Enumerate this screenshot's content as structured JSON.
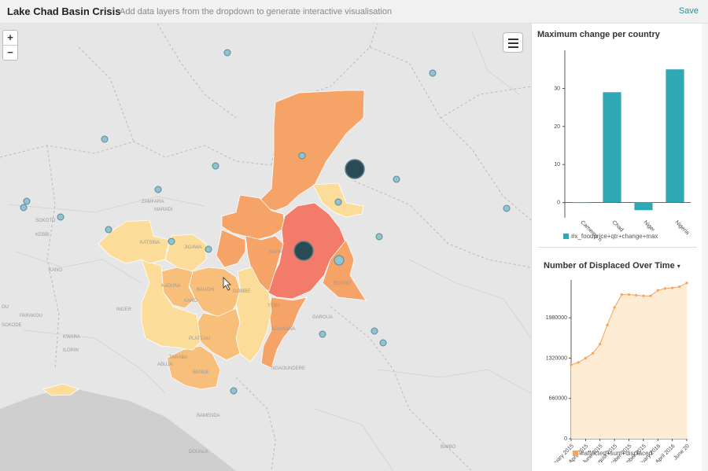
{
  "header": {
    "title": "Lake Chad Basin Crisis",
    "subtitle": "Add data layers from the dropdown to generate interactive visualisation",
    "save_label": "Save"
  },
  "map": {
    "zoom_in_label": "+",
    "zoom_out_label": "−",
    "place_labels": [
      "SOKOTO",
      "KEBBI",
      "ZAMFARA",
      "MARADI",
      "KATSINA",
      "KANO",
      "BAUCHI",
      "GOMBE",
      "JIGAWA",
      "KADUNA",
      "NIGER",
      "KWARA",
      "PLATEAU",
      "ADAMAWA",
      "TARABA",
      "MARA",
      "BORNO",
      "YOBE",
      "GAROUA",
      "NGAOUNDERE",
      "BAMENDA",
      "DOUALA",
      "BIMBO",
      "KANO",
      "PARAKOU",
      "SOKODE",
      "OU",
      "ILORIN",
      "ABUJA",
      "BENUE"
    ],
    "colors": {
      "very_high": "#f37b6a",
      "high": "#f5a367",
      "medium": "#f7bf7a",
      "low": "#fbdc98",
      "bubble": "#2a4a55",
      "marker": "#8fc3d1"
    }
  },
  "bar_panel": {
    "title": "Maximum change per country",
    "legend": "#x_foodprice+qtr+change+max",
    "color": "#31a9b4"
  },
  "line_panel": {
    "title": "Number of Displaced Over Time",
    "legend": "#affected+sum+displaced",
    "color": "#f5a55b"
  },
  "chart_data": [
    {
      "type": "bar",
      "categories": [
        "Camerooon",
        "Chad",
        "Niger",
        "Nigeria"
      ],
      "tick_labels": [
        "Cameroo n",
        "Chad",
        "Niger",
        "Nigeria"
      ],
      "values": [
        0,
        29,
        -2,
        35
      ],
      "ylim": [
        -4,
        40
      ],
      "yticks": [
        0,
        10,
        20,
        30
      ],
      "legend": "top-bottom"
    },
    {
      "type": "area",
      "x": [
        "February 2015",
        "March 2015",
        "April 2015",
        "May 2015",
        "June 2015",
        "July 2015",
        "August 2015",
        "September 2015",
        "October 2015",
        "November 2015",
        "December 2015",
        "January 2016",
        "February 2016",
        "March 2016",
        "April 2016",
        "May 2016",
        "June 2016"
      ],
      "tick_labels": [
        "February 2015",
        "April 2015",
        "June 2015",
        "August 2015",
        "October 2015",
        "December 2015",
        "February 2016",
        "April 2016",
        "June 20"
      ],
      "values": [
        1210000,
        1250000,
        1320000,
        1400000,
        1550000,
        1860000,
        2150000,
        2360000,
        2360000,
        2350000,
        2340000,
        2340000,
        2430000,
        2460000,
        2470000,
        2490000,
        2550000
      ],
      "ylim": [
        0,
        2600000
      ],
      "yticks": [
        0,
        660000,
        1320000,
        1980000
      ]
    }
  ]
}
